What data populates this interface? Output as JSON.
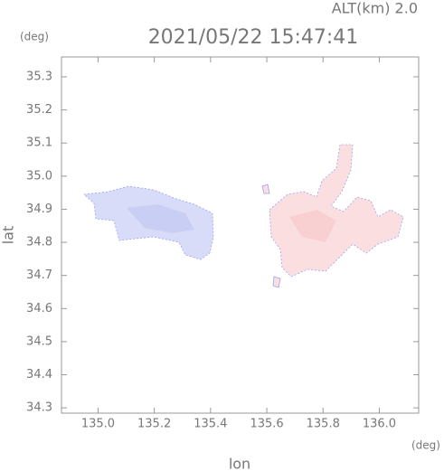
{
  "chart_data": {
    "type": "map",
    "title": "2021/05/22 15:47:41",
    "subtitle": "ALT(km) 2.0",
    "y_unit": "(deg)",
    "x_unit": "(deg)",
    "x_label": "lon",
    "y_label": "lat",
    "xlim": [
      134.87,
      136.14
    ],
    "ylim": [
      34.284,
      35.36
    ],
    "xticks": [
      {
        "value": 135.0,
        "label": "135.0"
      },
      135.2,
      135.4,
      135.6,
      135.8,
      {
        "value": 136.0,
        "label": "136.0"
      }
    ],
    "yticks": [
      34.3,
      34.4,
      34.5,
      34.6,
      34.7,
      34.8,
      34.9,
      {
        "value": 35.0,
        "label": "35.0"
      },
      35.1,
      35.2,
      35.3
    ]
  }
}
